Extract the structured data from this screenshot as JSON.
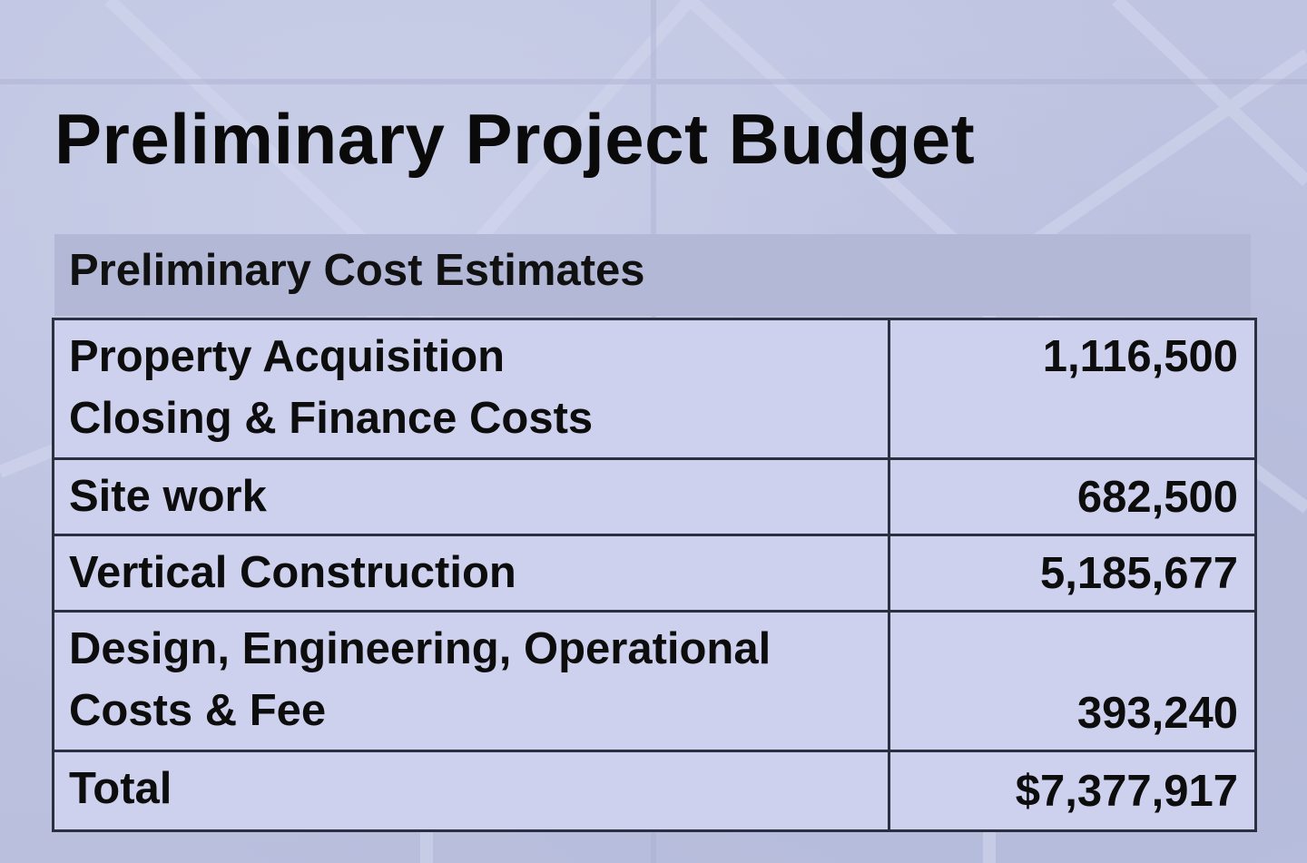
{
  "slide": {
    "title": "Preliminary Project Budget",
    "table": {
      "caption": "Preliminary Cost Estimates",
      "rows": [
        {
          "label_lines": [
            "Property Acquisition",
            "Closing & Finance Costs"
          ],
          "value": "1,116,500"
        },
        {
          "label_lines": [
            "Site work"
          ],
          "value": "682,500"
        },
        {
          "label_lines": [
            "Vertical Construction"
          ],
          "value": "5,185,677"
        },
        {
          "label_lines": [
            "Design, Engineering, Operational",
            "Costs & Fee"
          ],
          "value": "393,240"
        },
        {
          "label_lines": [
            "Total"
          ],
          "value": "$7,377,917"
        }
      ]
    }
  }
}
